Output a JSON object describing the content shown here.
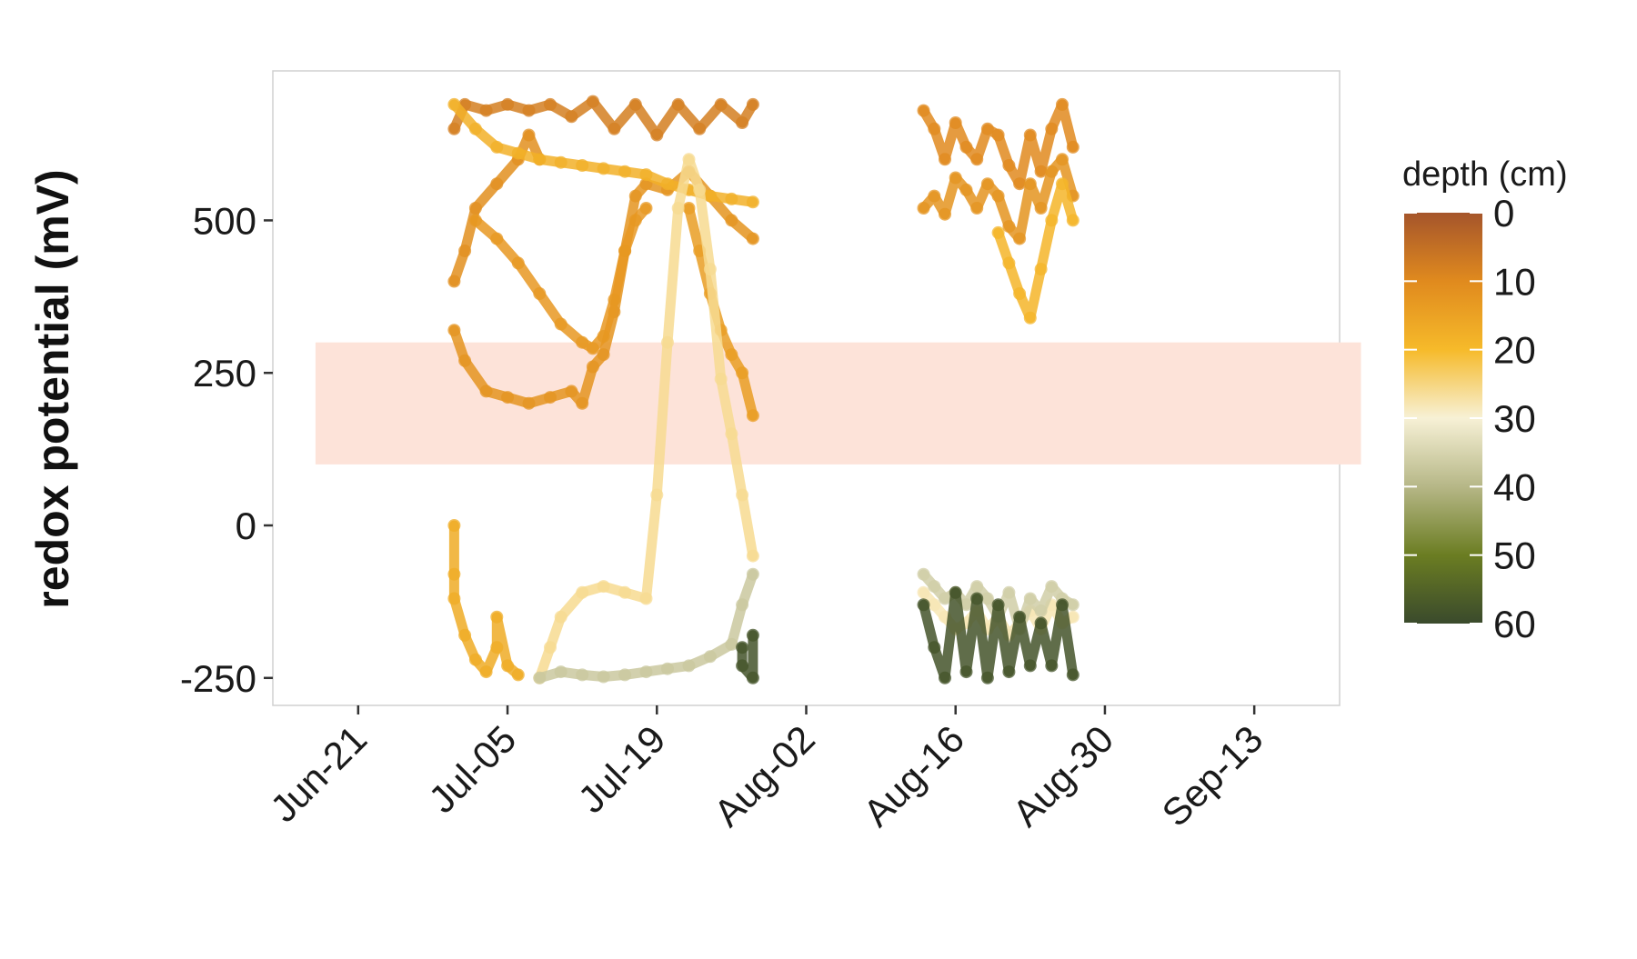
{
  "chart_data": {
    "type": "scatter",
    "title": "",
    "xlabel": "",
    "ylabel": "redox potential (mV)",
    "x_axis": {
      "type": "date",
      "range": [
        "06-13",
        "09-21"
      ],
      "ticks": [
        {
          "date": "06-21",
          "label": "Jun-21"
        },
        {
          "date": "07-05",
          "label": "Jul-05"
        },
        {
          "date": "07-19",
          "label": "Jul-19"
        },
        {
          "date": "08-02",
          "label": "Aug-02"
        },
        {
          "date": "08-16",
          "label": "Aug-16"
        },
        {
          "date": "08-30",
          "label": "Aug-30"
        },
        {
          "date": "09-13",
          "label": "Sep-13"
        }
      ]
    },
    "y_axis": {
      "range": [
        -295,
        745
      ],
      "ticks": [
        {
          "value": 500,
          "label": "500"
        },
        {
          "value": 250,
          "label": "250"
        },
        {
          "value": 0,
          "label": "0"
        },
        {
          "value": -250,
          "label": "-250"
        }
      ]
    },
    "grid": false,
    "reference_band": {
      "y0": 100,
      "y1": 300,
      "x0": "06-17",
      "x1": "09-23",
      "color": "#fde3d9"
    },
    "legend": {
      "title": "depth (cm)",
      "placement": "right",
      "type": "colorbar",
      "range": [
        0,
        60
      ],
      "labels": [
        {
          "value": 0,
          "label": "0"
        },
        {
          "value": 10,
          "label": "10"
        },
        {
          "value": 20,
          "label": "20"
        },
        {
          "value": 30,
          "label": "30"
        },
        {
          "value": 40,
          "label": "40"
        },
        {
          "value": 50,
          "label": "50"
        },
        {
          "value": 60,
          "label": "60"
        }
      ],
      "stops": [
        {
          "depth": 0,
          "color": "#a5552b"
        },
        {
          "depth": 10,
          "color": "#e08a1e"
        },
        {
          "depth": 20,
          "color": "#f6ba2a"
        },
        {
          "depth": 30,
          "color": "#f7f1d6"
        },
        {
          "depth": 40,
          "color": "#b6b787"
        },
        {
          "depth": 50,
          "color": "#6b7d22"
        },
        {
          "depth": 60,
          "color": "#3a4a2c"
        }
      ]
    },
    "series": [
      {
        "depth": 8,
        "points": [
          [
            "06-30",
            650
          ],
          [
            "07-01",
            690
          ],
          [
            "07-03",
            680
          ],
          [
            "07-05",
            690
          ],
          [
            "07-07",
            680
          ],
          [
            "07-09",
            690
          ],
          [
            "07-11",
            670
          ],
          [
            "07-13",
            695
          ],
          [
            "07-15",
            650
          ],
          [
            "07-17",
            690
          ],
          [
            "07-19",
            640
          ],
          [
            "07-21",
            690
          ],
          [
            "07-23",
            650
          ],
          [
            "07-25",
            690
          ],
          [
            "07-27",
            660
          ],
          [
            "07-28",
            690
          ]
        ]
      },
      {
        "depth": 11,
        "points": [
          [
            "06-30",
            400
          ],
          [
            "07-01",
            450
          ],
          [
            "07-02",
            520
          ],
          [
            "07-04",
            560
          ],
          [
            "07-06",
            600
          ],
          [
            "07-07",
            640
          ],
          [
            "07-08",
            600
          ]
        ]
      },
      {
        "depth": 12,
        "points": [
          [
            "06-30",
            320
          ],
          [
            "07-01",
            270
          ],
          [
            "07-03",
            220
          ],
          [
            "07-05",
            210
          ],
          [
            "07-07",
            200
          ],
          [
            "07-09",
            210
          ],
          [
            "07-11",
            220
          ],
          [
            "07-12",
            200
          ],
          [
            "07-13",
            260
          ],
          [
            "07-14",
            280
          ],
          [
            "07-15",
            350
          ],
          [
            "07-16",
            450
          ],
          [
            "07-17",
            540
          ],
          [
            "07-18",
            560
          ],
          [
            "07-20",
            550
          ],
          [
            "07-22",
            580
          ],
          [
            "07-24",
            540
          ],
          [
            "07-26",
            500
          ],
          [
            "07-28",
            470
          ]
        ]
      },
      {
        "depth": 13,
        "points": [
          [
            "07-02",
            500
          ],
          [
            "07-04",
            470
          ],
          [
            "07-06",
            430
          ],
          [
            "07-08",
            380
          ],
          [
            "07-10",
            330
          ],
          [
            "07-12",
            300
          ],
          [
            "07-13",
            290
          ],
          [
            "07-14",
            310
          ],
          [
            "07-15",
            370
          ],
          [
            "07-16",
            450
          ],
          [
            "07-17",
            500
          ],
          [
            "07-18",
            520
          ]
        ]
      },
      {
        "depth": 14,
        "points": [
          [
            "07-22",
            520
          ],
          [
            "07-23",
            450
          ],
          [
            "07-24",
            380
          ],
          [
            "07-25",
            320
          ],
          [
            "07-26",
            280
          ],
          [
            "07-27",
            250
          ],
          [
            "07-28",
            180
          ]
        ]
      },
      {
        "depth": 18,
        "points": [
          [
            "06-30",
            690
          ],
          [
            "07-02",
            650
          ],
          [
            "07-04",
            620
          ],
          [
            "07-06",
            610
          ],
          [
            "07-08",
            600
          ],
          [
            "07-10",
            595
          ],
          [
            "07-12",
            590
          ],
          [
            "07-14",
            585
          ],
          [
            "07-16",
            580
          ],
          [
            "07-18",
            575
          ],
          [
            "07-20",
            560
          ],
          [
            "07-22",
            550
          ],
          [
            "07-24",
            540
          ],
          [
            "07-26",
            535
          ],
          [
            "07-28",
            530
          ]
        ]
      },
      {
        "depth": 17,
        "points": [
          [
            "06-30",
            0
          ],
          [
            "06-30",
            -80
          ],
          [
            "06-30",
            -120
          ],
          [
            "07-01",
            -180
          ],
          [
            "07-02",
            -220
          ],
          [
            "07-03",
            -240
          ],
          [
            "07-04",
            -200
          ],
          [
            "07-04",
            -150
          ],
          [
            "07-05",
            -230
          ],
          [
            "07-06",
            -245
          ]
        ]
      },
      {
        "depth": 26,
        "points": [
          [
            "07-08",
            -250
          ],
          [
            "07-09",
            -200
          ],
          [
            "07-10",
            -150
          ],
          [
            "07-12",
            -110
          ],
          [
            "07-14",
            -100
          ],
          [
            "07-16",
            -110
          ],
          [
            "07-18",
            -120
          ],
          [
            "07-19",
            50
          ],
          [
            "07-20",
            300
          ],
          [
            "07-21",
            520
          ],
          [
            "07-22",
            600
          ],
          [
            "07-23",
            550
          ],
          [
            "07-24",
            420
          ],
          [
            "07-25",
            240
          ],
          [
            "07-26",
            150
          ],
          [
            "07-27",
            50
          ],
          [
            "07-28",
            -50
          ]
        ]
      },
      {
        "depth": 37,
        "points": [
          [
            "07-08",
            -250
          ],
          [
            "07-10",
            -240
          ],
          [
            "07-12",
            -245
          ],
          [
            "07-14",
            -248
          ],
          [
            "07-16",
            -245
          ],
          [
            "07-18",
            -240
          ],
          [
            "07-20",
            -235
          ],
          [
            "07-22",
            -230
          ],
          [
            "07-24",
            -215
          ],
          [
            "07-26",
            -195
          ],
          [
            "07-27",
            -130
          ],
          [
            "07-28",
            -80
          ]
        ]
      },
      {
        "depth": 58,
        "points": [
          [
            "07-27",
            -200
          ],
          [
            "07-27",
            -230
          ],
          [
            "07-28",
            -250
          ],
          [
            "07-28",
            -180
          ]
        ]
      },
      {
        "depth": 10,
        "points": [
          [
            "08-13",
            680
          ],
          [
            "08-14",
            650
          ],
          [
            "08-15",
            600
          ],
          [
            "08-16",
            660
          ],
          [
            "08-17",
            620
          ],
          [
            "08-18",
            600
          ],
          [
            "08-19",
            650
          ],
          [
            "08-20",
            640
          ],
          [
            "08-21",
            590
          ],
          [
            "08-22",
            560
          ],
          [
            "08-23",
            640
          ],
          [
            "08-24",
            580
          ],
          [
            "08-25",
            650
          ],
          [
            "08-26",
            690
          ],
          [
            "08-27",
            620
          ]
        ]
      },
      {
        "depth": 12,
        "points": [
          [
            "08-13",
            520
          ],
          [
            "08-14",
            540
          ],
          [
            "08-15",
            510
          ],
          [
            "08-16",
            570
          ],
          [
            "08-17",
            550
          ],
          [
            "08-18",
            520
          ],
          [
            "08-19",
            560
          ],
          [
            "08-20",
            540
          ],
          [
            "08-21",
            490
          ],
          [
            "08-22",
            470
          ],
          [
            "08-23",
            560
          ],
          [
            "08-24",
            520
          ],
          [
            "08-25",
            580
          ],
          [
            "08-26",
            600
          ],
          [
            "08-27",
            540
          ]
        ]
      },
      {
        "depth": 19,
        "points": [
          [
            "08-20",
            480
          ],
          [
            "08-21",
            430
          ],
          [
            "08-22",
            380
          ],
          [
            "08-23",
            340
          ],
          [
            "08-24",
            420
          ],
          [
            "08-25",
            500
          ],
          [
            "08-26",
            560
          ],
          [
            "08-27",
            500
          ]
        ]
      },
      {
        "depth": 28,
        "points": [
          [
            "08-13",
            -110
          ],
          [
            "08-14",
            -130
          ],
          [
            "08-15",
            -150
          ],
          [
            "08-16",
            -170
          ],
          [
            "08-17",
            -160
          ],
          [
            "08-18",
            -140
          ],
          [
            "08-19",
            -170
          ],
          [
            "08-20",
            -150
          ],
          [
            "08-21",
            -180
          ],
          [
            "08-22",
            -160
          ],
          [
            "08-23",
            -140
          ],
          [
            "08-24",
            -170
          ],
          [
            "08-25",
            -130
          ],
          [
            "08-26",
            -160
          ],
          [
            "08-27",
            -150
          ]
        ]
      },
      {
        "depth": 36,
        "points": [
          [
            "08-13",
            -80
          ],
          [
            "08-14",
            -100
          ],
          [
            "08-15",
            -120
          ],
          [
            "08-16",
            -110
          ],
          [
            "08-17",
            -130
          ],
          [
            "08-18",
            -100
          ],
          [
            "08-19",
            -120
          ],
          [
            "08-20",
            -150
          ],
          [
            "08-21",
            -110
          ],
          [
            "08-22",
            -170
          ],
          [
            "08-23",
            -120
          ],
          [
            "08-24",
            -140
          ],
          [
            "08-25",
            -100
          ],
          [
            "08-26",
            -120
          ],
          [
            "08-27",
            -130
          ]
        ]
      },
      {
        "depth": 58,
        "points": [
          [
            "08-13",
            -130
          ],
          [
            "08-14",
            -200
          ],
          [
            "08-15",
            -250
          ],
          [
            "08-16",
            -110
          ],
          [
            "08-17",
            -240
          ],
          [
            "08-18",
            -120
          ],
          [
            "08-19",
            -250
          ],
          [
            "08-20",
            -130
          ],
          [
            "08-21",
            -240
          ],
          [
            "08-22",
            -150
          ],
          [
            "08-23",
            -230
          ],
          [
            "08-24",
            -160
          ],
          [
            "08-25",
            -230
          ],
          [
            "08-26",
            -130
          ],
          [
            "08-27",
            -245
          ]
        ]
      }
    ]
  }
}
